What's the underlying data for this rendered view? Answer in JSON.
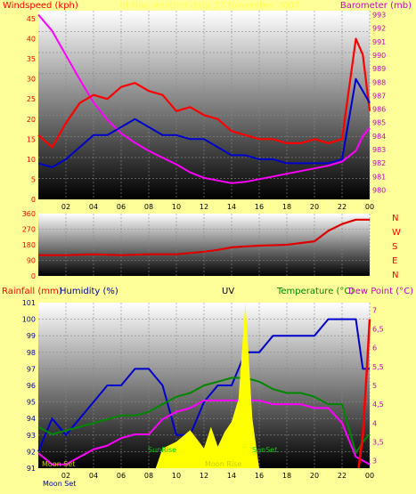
{
  "chart_data": [
    {
      "type": "line",
      "left_axis_label": "Windspeed (kph)",
      "right_axis_label": "Barometer (mb)",
      "header_text": "Hi-Nox weather data  27 November 2007",
      "left_ylim": [
        0,
        47
      ],
      "left_yticks": [
        "0",
        "5",
        "10",
        "15",
        "20",
        "25",
        "30",
        "35",
        "40",
        "45"
      ],
      "right_ylim": [
        979.3,
        993.3
      ],
      "right_yticks": [
        "980",
        "981",
        "982",
        "983",
        "984",
        "985",
        "986",
        "987",
        "988",
        "989",
        "990",
        "991",
        "992",
        "993"
      ],
      "xlim": [
        0,
        24
      ],
      "xticks": [
        "02",
        "04",
        "06",
        "08",
        "10",
        "12",
        "14",
        "16",
        "18",
        "20",
        "22",
        "00"
      ],
      "grid": true,
      "colors": {
        "gust": "#ff0000",
        "average": "#0000cc",
        "barometer": "#ff00ff",
        "left_axis": "#ff0000",
        "right_axis": "#cc00cc"
      },
      "series": [
        {
          "key": "barometer",
          "axis": "right",
          "x": [
            0,
            1,
            2,
            3,
            4,
            5,
            6,
            7,
            8,
            9,
            10,
            11,
            12,
            13,
            14,
            15,
            16,
            17,
            18,
            19,
            20,
            21,
            22,
            23,
            23.5,
            24
          ],
          "y": [
            993.0,
            991.8,
            990.0,
            988.2,
            986.5,
            985.2,
            984.2,
            983.5,
            982.9,
            982.4,
            981.9,
            981.3,
            980.9,
            980.7,
            980.5,
            980.6,
            980.8,
            981.0,
            981.2,
            981.4,
            981.6,
            981.8,
            982.1,
            982.9,
            984.0,
            984.6
          ]
        },
        {
          "key": "gust",
          "axis": "left",
          "x": [
            0,
            1,
            2,
            3,
            4,
            5,
            6,
            7,
            8,
            9,
            10,
            11,
            12,
            13,
            14,
            15,
            16,
            17,
            18,
            19,
            20,
            21,
            22,
            23,
            23.5,
            24
          ],
          "y": [
            16,
            13,
            19,
            24,
            26,
            25,
            28,
            29,
            27,
            26,
            22,
            23,
            21,
            20,
            17,
            16,
            15,
            15,
            14,
            14,
            15,
            14,
            15,
            40,
            36,
            22
          ]
        },
        {
          "key": "average",
          "axis": "left",
          "x": [
            0,
            1,
            2,
            3,
            4,
            5,
            6,
            7,
            8,
            9,
            10,
            11,
            12,
            13,
            14,
            15,
            16,
            17,
            18,
            19,
            20,
            21,
            22,
            23,
            23.5,
            24
          ],
          "y": [
            9,
            8,
            10,
            13,
            16,
            16,
            18,
            20,
            18,
            16,
            16,
            15,
            15,
            13,
            11,
            11,
            10,
            10,
            9,
            9,
            9,
            9,
            10,
            30,
            27,
            24
          ]
        }
      ]
    },
    {
      "type": "line",
      "left_axis_label": "",
      "right_axis_labels": [
        "N",
        "W",
        "S",
        "E",
        "N"
      ],
      "ylim": [
        0,
        360
      ],
      "yticks": [
        "0",
        "90",
        "180",
        "270",
        "360"
      ],
      "xlim": [
        0,
        24
      ],
      "xticks": [
        "02",
        "04",
        "06",
        "08",
        "10",
        "12",
        "14",
        "16",
        "18",
        "20",
        "22",
        "00"
      ],
      "colors": {
        "direction": "#dd0000"
      },
      "series": [
        {
          "key": "direction",
          "x": [
            0,
            2,
            4,
            6,
            8,
            10,
            12,
            13,
            14,
            15,
            16,
            18,
            20,
            21,
            22,
            23,
            24
          ],
          "y": [
            120,
            120,
            125,
            120,
            125,
            125,
            140,
            150,
            165,
            170,
            175,
            180,
            200,
            260,
            300,
            325,
            325
          ]
        }
      ]
    },
    {
      "type": "line",
      "labels": {
        "rain": "Rainfall (mm)",
        "humidity": "Humidity (%)",
        "uv": "UV",
        "temperature": "Temperature (°C)",
        "dew_point": "Dew Point (°C)"
      },
      "humidity_ylim": [
        91,
        101
      ],
      "humidity_yticks": [
        "91",
        "92",
        "93",
        "94",
        "95",
        "96",
        "97",
        "98",
        "99",
        "100",
        "101"
      ],
      "temp_ylim": [
        2.8,
        7.2
      ],
      "temp_yticks": [
        "3",
        "3,5",
        "4",
        "4,5",
        "5",
        "5,5",
        "6",
        "6,5",
        "7"
      ],
      "xlim": [
        0,
        24
      ],
      "xticks": [
        "02",
        "04",
        "06",
        "08",
        "10",
        "12",
        "14",
        "16",
        "18",
        "20",
        "22",
        "00"
      ],
      "annotations": {
        "sunrise": "SunRise",
        "sunset": "SunSet",
        "moon_rise": "Moon Rise",
        "moon_set": "Moon Set"
      },
      "colors": {
        "humidity": "#0000cc",
        "temperature": "#008800",
        "dew_point": "#ff00ff",
        "rain": "#ff0000",
        "uv": "#ffff00",
        "temp_axis": "#cc00cc"
      },
      "series": [
        {
          "key": "humidity",
          "axis": "left",
          "x": [
            0,
            1,
            2,
            3,
            4,
            5,
            6,
            7,
            8,
            9,
            10,
            11,
            12,
            13,
            14,
            15,
            16,
            17,
            18,
            19,
            20,
            21,
            22,
            23,
            23.5,
            24
          ],
          "y": [
            92,
            94,
            93,
            94,
            95,
            96,
            96,
            97,
            97,
            96,
            93,
            93,
            95,
            96,
            96,
            98,
            98,
            99,
            99,
            99,
            99,
            100,
            100,
            100,
            97,
            97
          ]
        },
        {
          "key": "temperature",
          "axis": "right",
          "x": [
            0,
            1,
            2,
            3,
            4,
            5,
            6,
            7,
            8,
            9,
            10,
            11,
            12,
            13,
            14,
            15,
            16,
            17,
            18,
            19,
            20,
            21,
            22,
            23,
            23.5,
            24
          ],
          "y": [
            3.9,
            3.7,
            3.8,
            3.9,
            4.0,
            4.1,
            4.2,
            4.2,
            4.3,
            4.5,
            4.7,
            4.8,
            5.0,
            5.1,
            5.2,
            5.2,
            5.1,
            4.9,
            4.8,
            4.8,
            4.7,
            4.5,
            4.5,
            3.2,
            3.5,
            3.7
          ]
        },
        {
          "key": "dew_point",
          "axis": "right",
          "x": [
            0,
            1,
            2,
            3,
            4,
            5,
            6,
            7,
            8,
            9,
            10,
            11,
            12,
            13,
            14,
            15,
            16,
            17,
            18,
            19,
            20,
            21,
            22,
            23,
            23.5,
            24
          ],
          "y": [
            3.2,
            2.9,
            2.9,
            3.1,
            3.3,
            3.4,
            3.6,
            3.7,
            3.7,
            4.1,
            4.3,
            4.4,
            4.6,
            4.6,
            4.6,
            4.6,
            4.6,
            4.5,
            4.5,
            4.5,
            4.4,
            4.4,
            4.0,
            3.1,
            3.0,
            2.9
          ]
        },
        {
          "key": "uv",
          "axis": "uv",
          "x": [
            8.5,
            9,
            10,
            11,
            12,
            12.5,
            13,
            13.5,
            14,
            14.5,
            15,
            15.5,
            16
          ],
          "y": [
            0,
            1.2,
            1.6,
            2.3,
            1.2,
            2.5,
            1.3,
            2.2,
            2.8,
            4.2,
            10,
            3.0,
            0
          ]
        },
        {
          "key": "rain",
          "axis": "rain",
          "x": [
            23.2,
            23.5,
            23.8,
            24
          ],
          "y": [
            0,
            2,
            6,
            9
          ]
        }
      ]
    }
  ]
}
